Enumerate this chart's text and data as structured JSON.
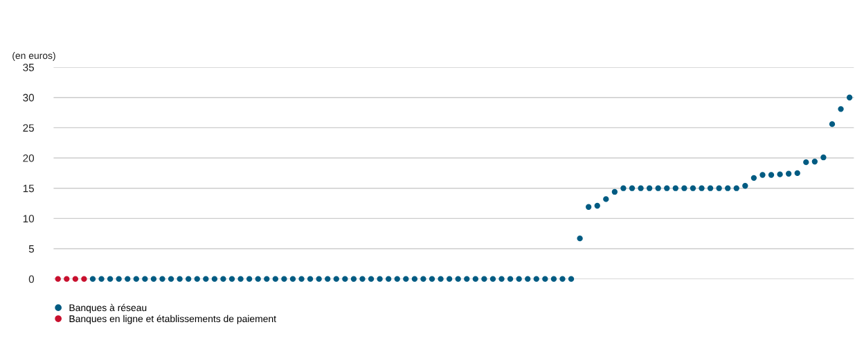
{
  "chart_data": {
    "type": "scatter",
    "ylabel": "(en euros)",
    "categories": [
      null,
      null,
      null,
      null,
      null,
      null,
      null,
      null,
      null,
      null,
      null,
      null,
      null,
      null,
      null,
      null,
      null,
      null,
      null,
      null,
      null,
      null,
      null,
      null,
      null,
      null,
      null,
      null,
      null,
      null,
      null,
      null,
      null,
      null,
      null,
      null,
      null,
      null,
      null,
      null,
      null,
      null,
      null,
      null,
      null,
      null,
      null,
      null,
      null,
      null,
      null,
      null,
      null,
      null,
      null,
      null,
      null,
      null,
      null,
      null,
      null,
      null,
      null,
      null,
      null,
      null,
      null,
      null,
      null,
      null,
      null,
      null,
      null,
      null,
      null,
      null,
      null,
      null,
      null,
      null,
      null,
      null,
      null,
      null,
      null,
      null,
      null,
      null,
      null,
      null,
      null,
      null
    ],
    "series": [
      {
        "name": "Banques à réseau",
        "color": "#005b82",
        "values": [
          null,
          null,
          null,
          null,
          0,
          0,
          0,
          0,
          0,
          0,
          0,
          0,
          0,
          0,
          0,
          0,
          0,
          0,
          0,
          0,
          0,
          0,
          0,
          0,
          0,
          0,
          0,
          0,
          0,
          0,
          0,
          0,
          0,
          0,
          0,
          0,
          0,
          0,
          0,
          0,
          0,
          0,
          0,
          0,
          0,
          0,
          0,
          0,
          0,
          0,
          0,
          0,
          0,
          0,
          0,
          0,
          0,
          0,
          0,
          0,
          6.7,
          11.9,
          12.1,
          13.2,
          14.4,
          15,
          15,
          15,
          15,
          15,
          15,
          15,
          15,
          15,
          15,
          15,
          15,
          15,
          15,
          15.4,
          16.7,
          17.2,
          17.2,
          17.3,
          17.4,
          17.5,
          19.3,
          19.4,
          20.1,
          25.6,
          28.1,
          30
        ]
      },
      {
        "name": "Banques en ligne et établissements de paiement",
        "color": "#c8102e",
        "values": [
          0,
          0,
          0,
          0,
          null,
          null,
          null,
          null,
          null,
          null,
          null,
          null,
          null,
          null,
          null,
          null,
          null,
          null,
          null,
          null,
          null,
          null,
          null,
          null,
          null,
          null,
          null,
          null,
          null,
          null,
          null,
          null,
          null,
          null,
          null,
          null,
          null,
          null,
          null,
          null,
          null,
          null,
          null,
          null,
          null,
          null,
          null,
          null,
          null,
          null,
          null,
          null,
          null,
          null,
          null,
          null,
          null,
          null,
          null,
          null,
          null,
          null,
          null,
          null,
          null,
          null,
          null,
          null,
          null,
          null,
          null,
          null,
          null,
          null,
          null,
          null,
          null,
          null,
          null,
          null,
          null,
          null,
          null,
          null,
          null,
          null,
          null,
          null,
          null,
          null,
          null,
          null
        ]
      }
    ],
    "ylim": [
      0,
      35
    ],
    "yticks": [
      0,
      5,
      10,
      15,
      20,
      25,
      30,
      35
    ],
    "grid": "y",
    "legend": "bottom left",
    "marker": "circle"
  }
}
